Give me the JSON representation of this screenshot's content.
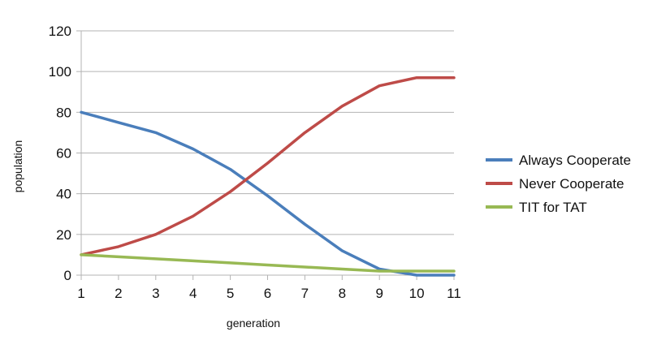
{
  "chart_data": {
    "type": "line",
    "title": "",
    "xlabel": "generation",
    "ylabel": "population",
    "x": [
      1,
      2,
      3,
      4,
      5,
      6,
      7,
      8,
      9,
      10,
      11
    ],
    "xlim": [
      1,
      11
    ],
    "ylim": [
      0,
      120
    ],
    "yticks": [
      0,
      20,
      40,
      60,
      80,
      100,
      120
    ],
    "grid": "horizontal",
    "legend_position": "right",
    "series": [
      {
        "name": "Always Cooperate",
        "color": "#4a7ebb",
        "values": [
          80,
          75,
          70,
          62,
          52,
          39,
          25,
          12,
          3,
          0,
          0
        ]
      },
      {
        "name": "Never Cooperate",
        "color": "#be4b48",
        "values": [
          10,
          14,
          20,
          29,
          41,
          55,
          70,
          83,
          93,
          97,
          97
        ]
      },
      {
        "name": "TIT for TAT",
        "color": "#98b954",
        "values": [
          10,
          9,
          8,
          7,
          6,
          5,
          4,
          3,
          2,
          2,
          2
        ]
      }
    ]
  }
}
